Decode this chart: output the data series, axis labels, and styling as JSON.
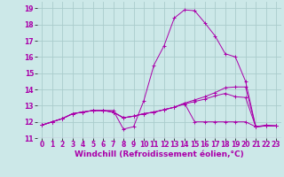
{
  "bg_color": "#cce8e8",
  "line_color": "#aa00aa",
  "grid_color": "#aacccc",
  "xlabel": "Windchill (Refroidissement éolien,°C)",
  "xlabel_fontsize": 6.5,
  "xtick_fontsize": 5.5,
  "ytick_fontsize": 5.5,
  "xlim": [
    -0.5,
    23.5
  ],
  "ylim": [
    11,
    19.4
  ],
  "yticks": [
    11,
    12,
    13,
    14,
    15,
    16,
    17,
    18,
    19
  ],
  "xticks": [
    0,
    1,
    2,
    3,
    4,
    5,
    6,
    7,
    8,
    9,
    10,
    11,
    12,
    13,
    14,
    15,
    16,
    17,
    18,
    19,
    20,
    21,
    22,
    23
  ],
  "series": [
    [
      11.8,
      12.0,
      12.2,
      12.5,
      12.6,
      12.7,
      12.7,
      12.7,
      11.55,
      11.7,
      13.3,
      15.5,
      16.7,
      18.4,
      18.9,
      18.85,
      18.1,
      17.3,
      16.2,
      16.0,
      14.5,
      11.7,
      11.8,
      11.75
    ],
    [
      11.8,
      12.0,
      12.2,
      12.5,
      12.6,
      12.7,
      12.7,
      12.6,
      12.25,
      12.35,
      12.5,
      12.6,
      12.75,
      12.9,
      13.1,
      13.25,
      13.4,
      13.6,
      13.75,
      13.55,
      13.5,
      11.7,
      11.75,
      11.75
    ],
    [
      11.8,
      12.0,
      12.2,
      12.5,
      12.6,
      12.7,
      12.7,
      12.6,
      12.25,
      12.35,
      12.5,
      12.6,
      12.75,
      12.9,
      13.15,
      13.35,
      13.55,
      13.8,
      14.1,
      14.15,
      14.15,
      11.7,
      11.75,
      11.75
    ],
    [
      11.8,
      12.0,
      12.2,
      12.5,
      12.6,
      12.7,
      12.7,
      12.6,
      12.25,
      12.35,
      12.5,
      12.6,
      12.75,
      12.9,
      13.15,
      12.0,
      12.0,
      12.0,
      12.0,
      12.0,
      12.0,
      11.7,
      11.75,
      11.75
    ]
  ]
}
